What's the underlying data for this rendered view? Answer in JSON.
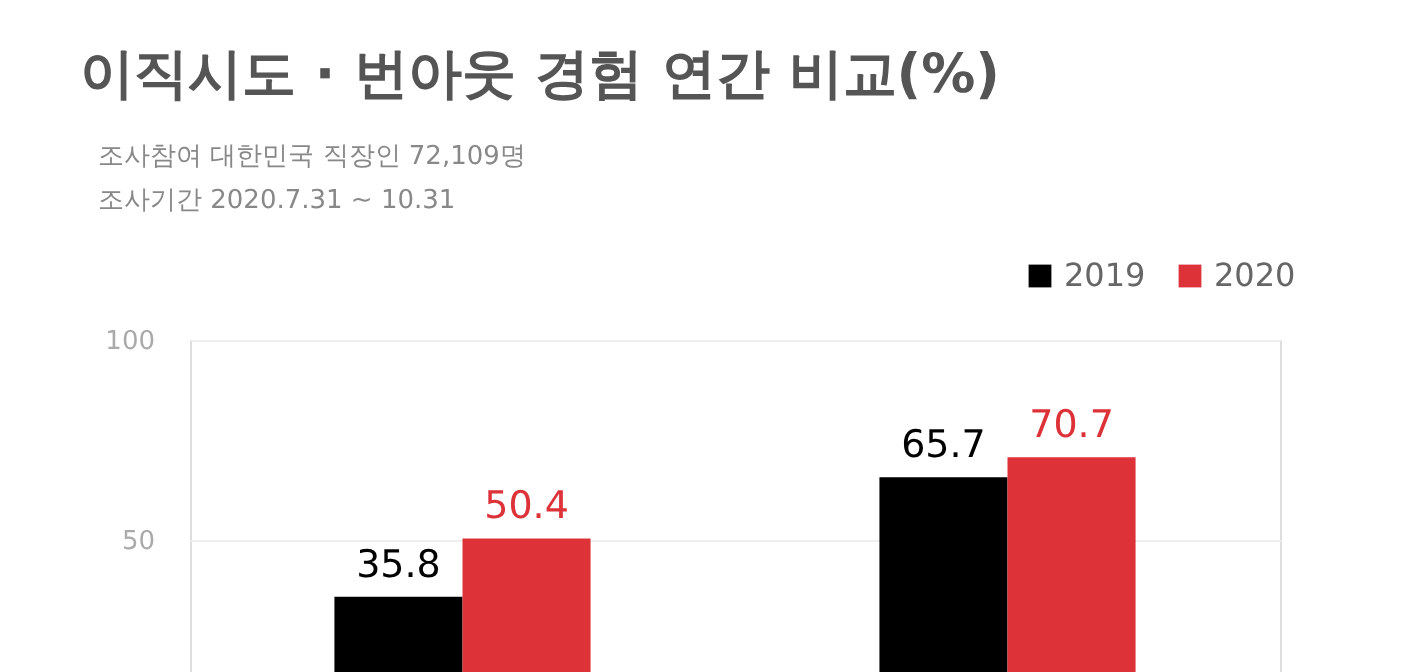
{
  "chart_data": {
    "type": "bar",
    "title": "이직시도 · 번아웃 경험 연간 비교(%)",
    "annotations": [
      "조사참여  대한민국 직장인 72,109명",
      "조사기간  2020.7.31 ~ 10.31"
    ],
    "categories": [
      null,
      null
    ],
    "series": [
      {
        "name": "2019",
        "color": "#000000",
        "values": [
          35.8,
          65.7
        ]
      },
      {
        "name": "2020",
        "color": "#dc3238",
        "values": [
          50.4,
          70.7
        ]
      }
    ],
    "ylim": [
      17,
      100
    ],
    "yticks": [
      50,
      100
    ],
    "grid": "y",
    "legend": "top right",
    "data_labels": true
  }
}
